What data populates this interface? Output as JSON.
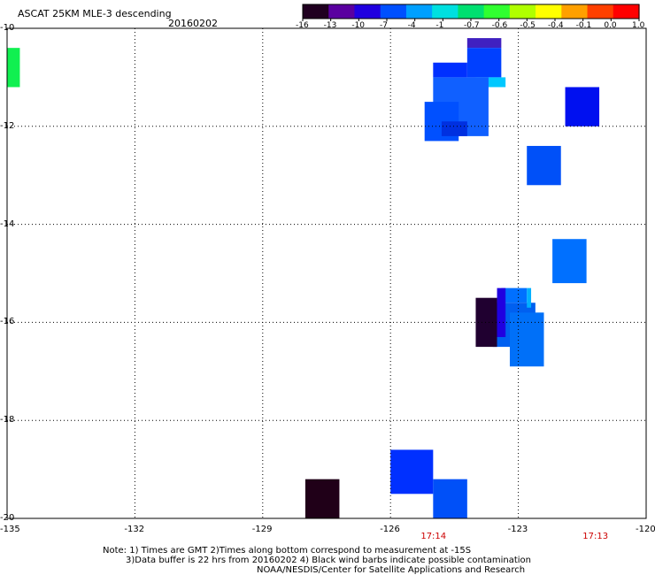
{
  "header": {
    "title": "ASCAT 25KM MLE-3 descending",
    "date": "20160202"
  },
  "colorbar": {
    "labels": [
      "-16",
      "-13",
      "-10",
      "-7",
      "-4",
      "-1",
      "-0.7",
      "-0.6",
      "-0.5",
      "-0.4",
      "-0.1",
      "0.0",
      "1.0"
    ],
    "colors": [
      "#200020",
      "#5a00a0",
      "#2000e0",
      "#0050ff",
      "#00a0ff",
      "#00e0e0",
      "#00e070",
      "#30ff30",
      "#b0ff00",
      "#ffff00",
      "#ffa000",
      "#ff4000",
      "#ff0000"
    ]
  },
  "axes": {
    "lat_labels": [
      "-10",
      "-12",
      "-14",
      "-16",
      "-18",
      "-20"
    ],
    "lon_labels": [
      "-135",
      "-132",
      "-129",
      "-126",
      "-123",
      "-120"
    ],
    "lat_range": [
      -20,
      -10
    ],
    "lon_range": [
      -135,
      -120
    ]
  },
  "times": [
    {
      "label": "17:14",
      "lon": -125.0
    },
    {
      "label": "17:13",
      "lon": -121.2
    }
  ],
  "notes": {
    "line1": "Note: 1) Times are GMT 2)Times along bottom correspond to measurement at -15S",
    "line2": "3)Data buffer is 22 hrs from 20160202 4) Black wind barbs indicate possible contamination",
    "line3": "NOAA/NESDIS/Center for Satellite Applications and Research"
  },
  "cells": [
    {
      "lon0": -135.0,
      "lon1": -134.7,
      "lat0": -11.2,
      "lat1": -10.4,
      "color": "#10f050"
    },
    {
      "lon0": -124.2,
      "lon1": -123.4,
      "lat0": -10.4,
      "lat1": -10.2,
      "color": "#4020c0"
    },
    {
      "lon0": -124.2,
      "lon1": -123.4,
      "lat0": -11.0,
      "lat1": -10.4,
      "color": "#0040ff"
    },
    {
      "lon0": -125.0,
      "lon1": -124.2,
      "lat0": -11.0,
      "lat1": -10.7,
      "color": "#0030ff"
    },
    {
      "lon0": -124.0,
      "lon1": -123.3,
      "lat0": -11.2,
      "lat1": -11.0,
      "color": "#00c8ff"
    },
    {
      "lon0": -125.0,
      "lon1": -123.7,
      "lat0": -12.2,
      "lat1": -11.0,
      "color": "#1060ff"
    },
    {
      "lon0": -125.2,
      "lon1": -124.4,
      "lat0": -12.3,
      "lat1": -11.5,
      "color": "#0050ff"
    },
    {
      "lon0": -124.8,
      "lon1": -124.2,
      "lat0": -12.2,
      "lat1": -11.9,
      "color": "#0030e0"
    },
    {
      "lon0": -121.9,
      "lon1": -121.1,
      "lat0": -12.0,
      "lat1": -11.2,
      "color": "#0010f0"
    },
    {
      "lon0": -122.8,
      "lon1": -122.0,
      "lat0": -13.2,
      "lat1": -12.4,
      "color": "#0050f8"
    },
    {
      "lon0": -122.2,
      "lon1": -121.4,
      "lat0": -15.2,
      "lat1": -14.3,
      "color": "#0070ff"
    },
    {
      "lon0": -123.4,
      "lon1": -122.8,
      "lat0": -15.6,
      "lat1": -15.3,
      "color": "#0070ff"
    },
    {
      "lon0": -123.6,
      "lon1": -122.6,
      "lat0": -16.5,
      "lat1": -15.6,
      "color": "#0060f0"
    },
    {
      "lon0": -124.0,
      "lon1": -123.5,
      "lat0": -16.5,
      "lat1": -15.5,
      "color": "#200030"
    },
    {
      "lon0": -123.5,
      "lon1": -123.3,
      "lat0": -16.3,
      "lat1": -15.3,
      "color": "#2000e0"
    },
    {
      "lon0": -123.2,
      "lon1": -122.4,
      "lat0": -16.9,
      "lat1": -15.8,
      "color": "#0070f8"
    },
    {
      "lon0": -122.8,
      "lon1": -122.7,
      "lat0": -15.7,
      "lat1": -15.3,
      "color": "#00b0ff"
    },
    {
      "lon0": -126.0,
      "lon1": -125.0,
      "lat0": -19.5,
      "lat1": -18.6,
      "color": "#0030ff"
    },
    {
      "lon0": -125.0,
      "lon1": -124.2,
      "lat0": -20.0,
      "lat1": -19.2,
      "color": "#0050f8"
    },
    {
      "lon0": -128.0,
      "lon1": -127.2,
      "lat0": -20.0,
      "lat1": -19.2,
      "color": "#200018"
    }
  ]
}
